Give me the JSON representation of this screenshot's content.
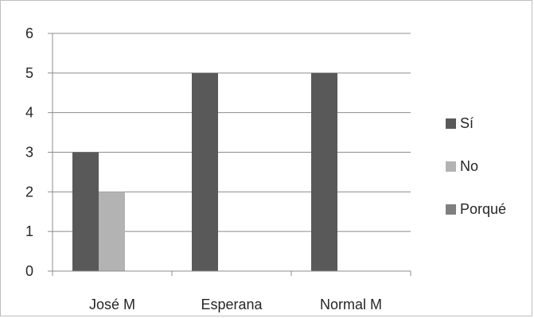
{
  "chart_data": {
    "type": "bar",
    "categories": [
      "José M",
      "Esperana",
      "Normal M"
    ],
    "series": [
      {
        "name": "Sí",
        "values": [
          3,
          5,
          5
        ],
        "color": "#595959"
      },
      {
        "name": "No",
        "values": [
          2,
          0,
          0
        ],
        "color": "#b3b3b3"
      },
      {
        "name": "Porqué",
        "values": [
          0,
          0,
          0
        ],
        "color": "#7f7f7f"
      }
    ],
    "ylim": [
      0,
      6
    ],
    "yticks": [
      "0",
      "1",
      "2",
      "3",
      "4",
      "5",
      "6"
    ],
    "grid": true,
    "legend_position": "right",
    "title": "",
    "xlabel": "",
    "ylabel": ""
  }
}
